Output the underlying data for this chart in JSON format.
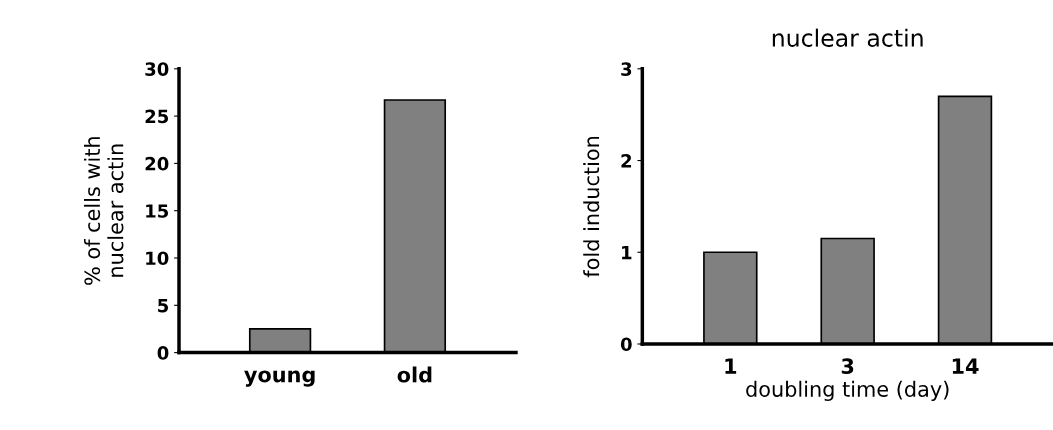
{
  "chart_data": [
    {
      "type": "bar",
      "ylabel": "% of cells with\nnuclear actin",
      "categories": [
        "young",
        "old"
      ],
      "values": [
        2.5,
        26.7
      ],
      "color": "#808080",
      "ylim": [
        0,
        30
      ],
      "yticks": [
        0,
        5,
        10,
        15,
        20,
        25,
        30
      ]
    },
    {
      "type": "bar",
      "title": "nuclear actin",
      "ylabel": "fold induction",
      "xlabel": "doubling time (day)",
      "categories": [
        "1",
        "3",
        "14"
      ],
      "values": [
        1.0,
        1.15,
        2.7
      ],
      "color": "#808080",
      "ylim": [
        0,
        3
      ],
      "yticks": [
        0,
        1,
        2,
        3
      ]
    }
  ]
}
